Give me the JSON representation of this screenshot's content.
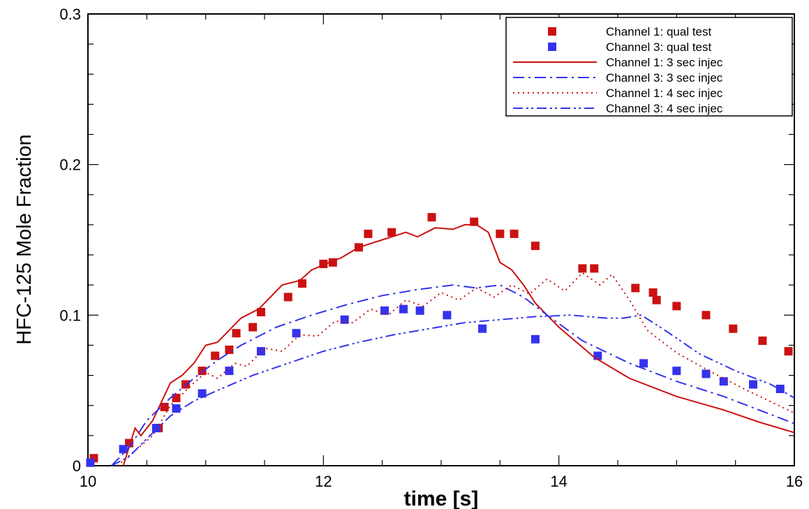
{
  "chart_data": {
    "type": "line",
    "title": "",
    "xlabel": "time [s]",
    "ylabel": "HFC-125 Mole Fraction",
    "xlim": [
      10,
      16
    ],
    "ylim": [
      0,
      0.3
    ],
    "x_ticks": [
      10,
      12,
      14,
      16
    ],
    "x_tick_labels": [
      "10",
      "12",
      "14",
      "16"
    ],
    "y_ticks": [
      0,
      0.1,
      0.2,
      0.3
    ],
    "y_tick_labels": [
      "0",
      "0.1",
      "0.2",
      "0.3"
    ],
    "grid": false,
    "legend_position": "top-right",
    "series": [
      {
        "name": "Channel 1:  qual test",
        "kind": "markers",
        "color": "#cc1111",
        "points": [
          [
            10.05,
            0.005
          ],
          [
            10.35,
            0.015
          ],
          [
            10.6,
            0.025
          ],
          [
            10.65,
            0.039
          ],
          [
            10.75,
            0.045
          ],
          [
            10.83,
            0.054
          ],
          [
            10.97,
            0.063
          ],
          [
            11.08,
            0.073
          ],
          [
            11.2,
            0.077
          ],
          [
            11.26,
            0.088
          ],
          [
            11.4,
            0.092
          ],
          [
            11.47,
            0.102
          ],
          [
            11.7,
            0.112
          ],
          [
            11.82,
            0.121
          ],
          [
            12.0,
            0.134
          ],
          [
            12.08,
            0.135
          ],
          [
            12.3,
            0.145
          ],
          [
            12.38,
            0.154
          ],
          [
            12.58,
            0.155
          ],
          [
            12.92,
            0.165
          ],
          [
            13.28,
            0.162
          ],
          [
            13.5,
            0.154
          ],
          [
            13.62,
            0.154
          ],
          [
            13.8,
            0.146
          ],
          [
            14.2,
            0.131
          ],
          [
            14.3,
            0.131
          ],
          [
            14.65,
            0.118
          ],
          [
            14.8,
            0.115
          ],
          [
            14.83,
            0.11
          ],
          [
            15.0,
            0.106
          ],
          [
            15.25,
            0.1
          ],
          [
            15.48,
            0.091
          ],
          [
            15.73,
            0.083
          ],
          [
            15.95,
            0.076
          ]
        ]
      },
      {
        "name": "Channel 3:  qual test",
        "kind": "markers",
        "color": "#3333ee",
        "points": [
          [
            10.02,
            0.002
          ],
          [
            10.3,
            0.011
          ],
          [
            10.58,
            0.025
          ],
          [
            10.75,
            0.038
          ],
          [
            10.97,
            0.048
          ],
          [
            11.2,
            0.063
          ],
          [
            11.47,
            0.076
          ],
          [
            11.77,
            0.088
          ],
          [
            12.18,
            0.097
          ],
          [
            12.52,
            0.103
          ],
          [
            12.68,
            0.104
          ],
          [
            12.82,
            0.103
          ],
          [
            13.05,
            0.1
          ],
          [
            13.35,
            0.091
          ],
          [
            13.8,
            0.084
          ],
          [
            14.33,
            0.073
          ],
          [
            14.72,
            0.068
          ],
          [
            15.0,
            0.063
          ],
          [
            15.25,
            0.061
          ],
          [
            15.4,
            0.056
          ],
          [
            15.65,
            0.054
          ],
          [
            15.88,
            0.051
          ]
        ]
      },
      {
        "name": "Channel 1:  3 sec injec",
        "kind": "line",
        "color": "#cc1111",
        "dash": "",
        "points": [
          [
            10.3,
            0.0
          ],
          [
            10.4,
            0.025
          ],
          [
            10.45,
            0.02
          ],
          [
            10.55,
            0.03
          ],
          [
            10.7,
            0.055
          ],
          [
            10.8,
            0.06
          ],
          [
            10.9,
            0.068
          ],
          [
            11.0,
            0.08
          ],
          [
            11.1,
            0.082
          ],
          [
            11.2,
            0.09
          ],
          [
            11.3,
            0.098
          ],
          [
            11.45,
            0.104
          ],
          [
            11.55,
            0.112
          ],
          [
            11.65,
            0.12
          ],
          [
            11.8,
            0.123
          ],
          [
            11.9,
            0.13
          ],
          [
            12.05,
            0.135
          ],
          [
            12.15,
            0.138
          ],
          [
            12.3,
            0.145
          ],
          [
            12.5,
            0.15
          ],
          [
            12.7,
            0.155
          ],
          [
            12.8,
            0.152
          ],
          [
            12.95,
            0.158
          ],
          [
            13.1,
            0.157
          ],
          [
            13.2,
            0.16
          ],
          [
            13.3,
            0.16
          ],
          [
            13.4,
            0.155
          ],
          [
            13.5,
            0.135
          ],
          [
            13.6,
            0.13
          ],
          [
            13.7,
            0.12
          ],
          [
            13.8,
            0.108
          ],
          [
            14.0,
            0.092
          ],
          [
            14.3,
            0.072
          ],
          [
            14.6,
            0.058
          ],
          [
            15.0,
            0.046
          ],
          [
            15.4,
            0.037
          ],
          [
            15.7,
            0.029
          ],
          [
            16.0,
            0.022
          ]
        ]
      },
      {
        "name": "Channel 3:  3 sec injec",
        "kind": "line",
        "color": "#3333ee",
        "dash": "16,6,3,6",
        "points": [
          [
            10.2,
            0.0
          ],
          [
            10.35,
            0.012
          ],
          [
            10.5,
            0.03
          ],
          [
            10.7,
            0.045
          ],
          [
            10.9,
            0.058
          ],
          [
            11.1,
            0.07
          ],
          [
            11.3,
            0.08
          ],
          [
            11.6,
            0.092
          ],
          [
            11.9,
            0.1
          ],
          [
            12.2,
            0.107
          ],
          [
            12.5,
            0.113
          ],
          [
            12.8,
            0.117
          ],
          [
            13.1,
            0.12
          ],
          [
            13.3,
            0.118
          ],
          [
            13.5,
            0.12
          ],
          [
            13.7,
            0.112
          ],
          [
            13.9,
            0.1
          ],
          [
            14.2,
            0.083
          ],
          [
            14.6,
            0.068
          ],
          [
            15.0,
            0.056
          ],
          [
            15.4,
            0.046
          ],
          [
            15.7,
            0.037
          ],
          [
            16.0,
            0.028
          ]
        ]
      },
      {
        "name": "Channel 1:  4 sec injec",
        "kind": "line",
        "color": "#cc1111",
        "dash": "2,5",
        "points": [
          [
            10.25,
            0.0
          ],
          [
            10.4,
            0.01
          ],
          [
            10.55,
            0.02
          ],
          [
            10.7,
            0.04
          ],
          [
            10.9,
            0.055
          ],
          [
            11.0,
            0.062
          ],
          [
            11.1,
            0.058
          ],
          [
            11.25,
            0.068
          ],
          [
            11.35,
            0.066
          ],
          [
            11.5,
            0.078
          ],
          [
            11.65,
            0.076
          ],
          [
            11.8,
            0.087
          ],
          [
            11.95,
            0.086
          ],
          [
            12.1,
            0.096
          ],
          [
            12.25,
            0.095
          ],
          [
            12.4,
            0.104
          ],
          [
            12.55,
            0.1
          ],
          [
            12.7,
            0.11
          ],
          [
            12.85,
            0.106
          ],
          [
            13.0,
            0.115
          ],
          [
            13.15,
            0.11
          ],
          [
            13.3,
            0.118
          ],
          [
            13.45,
            0.112
          ],
          [
            13.6,
            0.12
          ],
          [
            13.75,
            0.114
          ],
          [
            13.9,
            0.124
          ],
          [
            14.05,
            0.116
          ],
          [
            14.2,
            0.128
          ],
          [
            14.35,
            0.12
          ],
          [
            14.45,
            0.127
          ],
          [
            14.6,
            0.11
          ],
          [
            14.75,
            0.09
          ],
          [
            15.0,
            0.075
          ],
          [
            15.3,
            0.062
          ],
          [
            15.6,
            0.05
          ],
          [
            16.0,
            0.035
          ]
        ]
      },
      {
        "name": "Channel 3:  4 sec injec",
        "kind": "line",
        "color": "#3333ee",
        "dash": "14,5,3,4,3,5",
        "points": [
          [
            10.2,
            0.0
          ],
          [
            10.35,
            0.006
          ],
          [
            10.5,
            0.018
          ],
          [
            10.7,
            0.033
          ],
          [
            10.9,
            0.043
          ],
          [
            11.1,
            0.05
          ],
          [
            11.4,
            0.06
          ],
          [
            11.7,
            0.068
          ],
          [
            12.0,
            0.076
          ],
          [
            12.3,
            0.082
          ],
          [
            12.6,
            0.087
          ],
          [
            12.9,
            0.091
          ],
          [
            13.2,
            0.095
          ],
          [
            13.5,
            0.097
          ],
          [
            13.8,
            0.099
          ],
          [
            14.1,
            0.1
          ],
          [
            14.4,
            0.098
          ],
          [
            14.55,
            0.098
          ],
          [
            14.7,
            0.1
          ],
          [
            14.9,
            0.09
          ],
          [
            15.2,
            0.074
          ],
          [
            15.5,
            0.063
          ],
          [
            15.8,
            0.054
          ],
          [
            16.0,
            0.045
          ]
        ]
      }
    ]
  }
}
